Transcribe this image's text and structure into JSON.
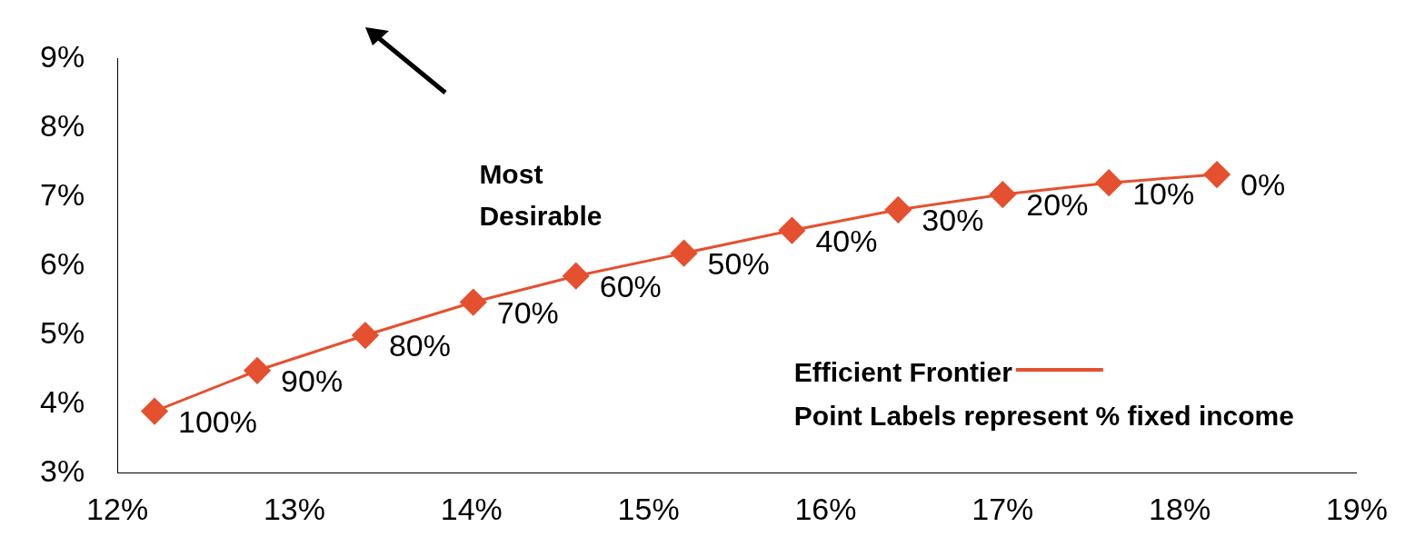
{
  "chart_data": {
    "type": "line",
    "x": [
      12.21,
      12.79,
      13.4,
      14.01,
      14.59,
      15.2,
      15.81,
      16.41,
      17.0,
      17.6,
      18.21
    ],
    "series": [
      {
        "name": "Efficient Frontier",
        "color": "#e5502f",
        "values": [
          3.89,
          4.48,
          4.99,
          5.47,
          5.85,
          6.18,
          6.51,
          6.81,
          7.03,
          7.2,
          7.32
        ]
      }
    ],
    "xlim": [
      12,
      19
    ],
    "xticks": [
      {
        "value": 12,
        "label": "12%"
      },
      {
        "value": 13,
        "label": "13%"
      },
      {
        "value": 14,
        "label": "14%"
      },
      {
        "value": 15,
        "label": "15%"
      },
      {
        "value": 16,
        "label": "16%"
      },
      {
        "value": 17,
        "label": "17%"
      },
      {
        "value": 18,
        "label": "18%"
      },
      {
        "value": 19,
        "label": "19%"
      }
    ],
    "ylim": [
      3,
      9
    ],
    "yticks": [
      {
        "value": 3,
        "label": "3%"
      },
      {
        "value": 4,
        "label": "4%"
      },
      {
        "value": 5,
        "label": "5%"
      },
      {
        "value": 6,
        "label": "6%"
      },
      {
        "value": 7,
        "label": "7%"
      },
      {
        "value": 8,
        "label": "8%"
      },
      {
        "value": 9,
        "label": "9%"
      }
    ],
    "annotations": [
      "Most Desirable",
      "Point Labels represent % fixed income",
      {
        "text": "100%",
        "x": 12.21,
        "y": 3.89
      },
      {
        "text": "90%",
        "x": 12.79,
        "y": 4.48
      },
      {
        "text": "80%",
        "x": 13.4,
        "y": 4.99
      },
      {
        "text": "70%",
        "x": 14.01,
        "y": 5.47
      },
      {
        "text": "60%",
        "x": 14.59,
        "y": 5.85
      },
      {
        "text": "50%",
        "x": 15.2,
        "y": 6.18
      },
      {
        "text": "40%",
        "x": 15.81,
        "y": 6.51
      },
      {
        "text": "30%",
        "x": 16.41,
        "y": 6.81
      },
      {
        "text": "20%",
        "x": 17.0,
        "y": 7.03
      },
      {
        "text": "10%",
        "x": 17.6,
        "y": 7.2
      },
      {
        "text": "0%",
        "x": 18.21,
        "y": 7.32
      }
    ],
    "legend": "bottom right",
    "grid": false,
    "marker": "diamond",
    "line_style": "solid"
  }
}
